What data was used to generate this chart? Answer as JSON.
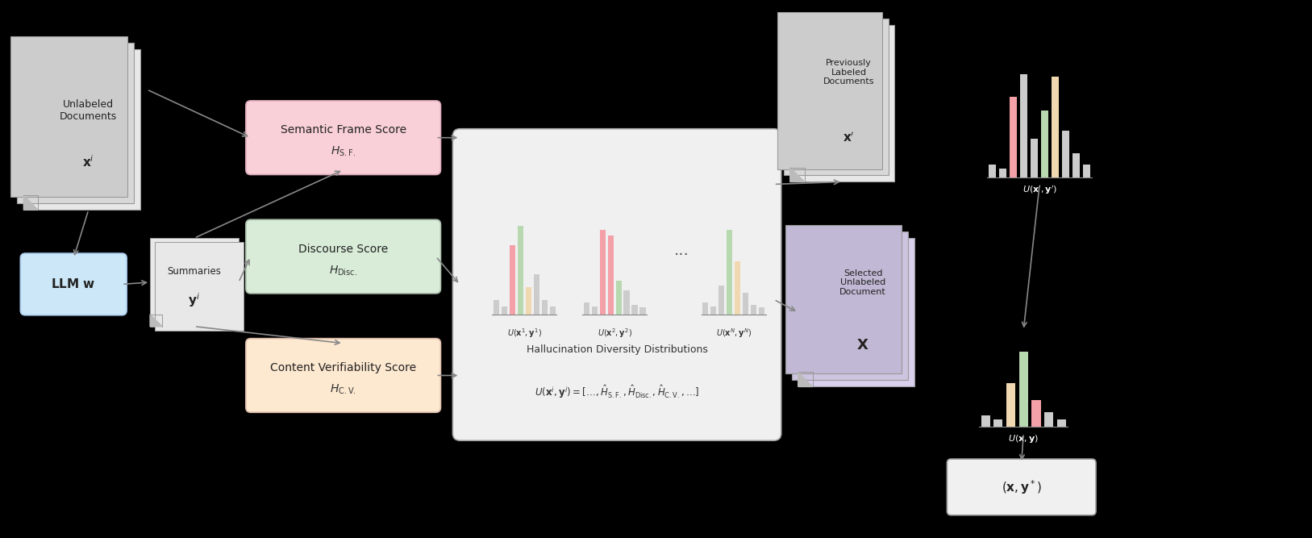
{
  "bg_color": "#000000",
  "fig_width": 16.27,
  "fig_height": 6.67,
  "colors": {
    "sf_box": "#f9d0d8",
    "disc_box": "#d8ecda",
    "cv_box": "#fde8d0",
    "llm_box": "#d0e8f8",
    "doc_page": "#e8e8e8",
    "doc_page2": "#d8d8d8",
    "doc_page3": "#cccccc",
    "div_box": "#f0f0f0",
    "selected_box": "#d8d0ec",
    "prev_box": "#e8e8e8",
    "output_box": "#f0f0f0",
    "pink": "#f4a0a8",
    "green": "#b8d8b0",
    "peach": "#f0d8b0",
    "gray": "#cccccc",
    "darkgray": "#aaaaaa",
    "arrow": "#888888",
    "text_dark": "#222222",
    "text_white": "#ffffff"
  },
  "hist1_bars": [
    0.15,
    0.08,
    0.72,
    0.92,
    0.28,
    0.42,
    0.15,
    0.08
  ],
  "hist1_colors": [
    "#cccccc",
    "#cccccc",
    "#f4a0a8",
    "#b8d8b0",
    "#f0d8b0",
    "#cccccc",
    "#cccccc",
    "#cccccc"
  ],
  "hist2_bars": [
    0.12,
    0.08,
    0.88,
    0.82,
    0.35,
    0.25,
    0.1,
    0.07
  ],
  "hist2_colors": [
    "#cccccc",
    "#cccccc",
    "#f4a0a8",
    "#f4a0a8",
    "#b8d8b0",
    "#cccccc",
    "#cccccc",
    "#cccccc"
  ],
  "histN_bars": [
    0.12,
    0.08,
    0.3,
    0.88,
    0.55,
    0.22,
    0.1,
    0.07
  ],
  "histN_colors": [
    "#cccccc",
    "#cccccc",
    "#cccccc",
    "#b8d8b0",
    "#f0d8b0",
    "#cccccc",
    "#cccccc",
    "#cccccc"
  ],
  "histU_bars": [
    0.12,
    0.08,
    0.72,
    0.92,
    0.35,
    0.6,
    0.9,
    0.42,
    0.22,
    0.12
  ],
  "histU_colors": [
    "#cccccc",
    "#cccccc",
    "#f4a0a8",
    "#cccccc",
    "#cccccc",
    "#b8d8b0",
    "#f0d8b0",
    "#cccccc",
    "#cccccc",
    "#cccccc"
  ],
  "histX_bars": [
    0.12,
    0.08,
    0.45,
    0.78,
    0.28,
    0.15,
    0.08
  ],
  "histX_colors": [
    "#cccccc",
    "#cccccc",
    "#f0d8b0",
    "#b8d8b0",
    "#f4a0a8",
    "#cccccc",
    "#cccccc"
  ]
}
